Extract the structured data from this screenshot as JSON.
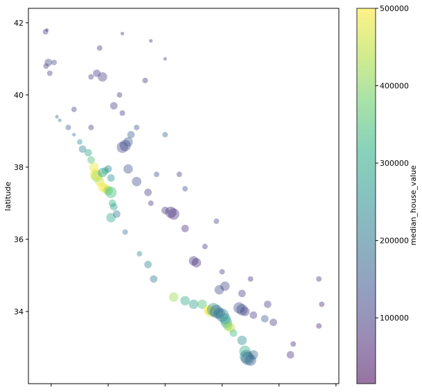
{
  "chart_data": {
    "type": "scatter",
    "title": "",
    "xlabel": "",
    "ylabel": "latitude",
    "ylim": [
      32.0,
      42.4
    ],
    "xlim": [
      -124.8,
      -113.9
    ],
    "yticks": [
      34,
      36,
      38,
      40,
      42
    ],
    "xticks": [
      -124,
      -122,
      -120,
      -118,
      -116,
      -114
    ],
    "grid": false,
    "colormap": "viridis",
    "colorbar": {
      "label": "median_house_value",
      "range": [
        14999,
        500001
      ],
      "ticks": [
        100000,
        200000,
        300000,
        400000,
        500000
      ],
      "tick_labels": [
        "100000",
        "200000",
        "300000",
        "400000",
        "500000"
      ]
    },
    "marker_alpha": 0.4,
    "series": [
      {
        "values_desc": "longitude, latitude, median_house_value, population-size",
        "points": [
          [
            -124.15,
            41.8,
            85000,
            1
          ],
          [
            -124.2,
            41.75,
            90000,
            2
          ],
          [
            -124.18,
            40.8,
            95000,
            2
          ],
          [
            -124.1,
            40.9,
            110000,
            3
          ],
          [
            -124.05,
            40.6,
            100000,
            2
          ],
          [
            -123.8,
            39.4,
            140000,
            1
          ],
          [
            -123.7,
            39.3,
            180000,
            1
          ],
          [
            -123.4,
            39.1,
            150000,
            2
          ],
          [
            -123.2,
            38.9,
            200000,
            1
          ],
          [
            -123.0,
            38.7,
            260000,
            2
          ],
          [
            -122.9,
            38.5,
            230000,
            3
          ],
          [
            -122.7,
            38.4,
            290000,
            3
          ],
          [
            -122.6,
            38.2,
            350000,
            3
          ],
          [
            -122.5,
            38.0,
            480000,
            4
          ],
          [
            -122.45,
            37.8,
            500000,
            5
          ],
          [
            -122.4,
            37.75,
            420000,
            5
          ],
          [
            -122.3,
            37.6,
            460000,
            4
          ],
          [
            -122.2,
            37.45,
            500000,
            4
          ],
          [
            -122.1,
            37.4,
            480000,
            4
          ],
          [
            -122.0,
            37.35,
            400000,
            4
          ],
          [
            -121.9,
            37.3,
            330000,
            5
          ],
          [
            -121.85,
            37.0,
            310000,
            3
          ],
          [
            -121.8,
            36.9,
            280000,
            3
          ],
          [
            -121.9,
            36.6,
            300000,
            4
          ],
          [
            -121.7,
            36.7,
            200000,
            3
          ],
          [
            -122.2,
            37.85,
            280000,
            4
          ],
          [
            -122.1,
            37.9,
            330000,
            3
          ],
          [
            -122.0,
            37.95,
            220000,
            3
          ],
          [
            -121.5,
            38.55,
            120000,
            5
          ],
          [
            -121.4,
            38.6,
            110000,
            5
          ],
          [
            -121.3,
            38.7,
            140000,
            4
          ],
          [
            -121.2,
            38.9,
            160000,
            3
          ],
          [
            -121.0,
            39.1,
            130000,
            2
          ],
          [
            -121.5,
            39.5,
            80000,
            2
          ],
          [
            -121.8,
            39.7,
            90000,
            3
          ],
          [
            -122.2,
            40.5,
            95000,
            4
          ],
          [
            -122.4,
            40.6,
            85000,
            3
          ],
          [
            -122.6,
            40.5,
            100000,
            2
          ],
          [
            -121.9,
            37.7,
            250000,
            3
          ],
          [
            -121.3,
            37.95,
            130000,
            4
          ],
          [
            -121.0,
            37.6,
            120000,
            4
          ],
          [
            -120.6,
            37.3,
            95000,
            3
          ],
          [
            -120.5,
            37.0,
            85000,
            2
          ],
          [
            -120.0,
            36.8,
            90000,
            3
          ],
          [
            -119.8,
            36.75,
            80000,
            5
          ],
          [
            -119.7,
            36.7,
            75000,
            5
          ],
          [
            -119.3,
            36.3,
            70000,
            3
          ],
          [
            -119.0,
            35.4,
            75000,
            4
          ],
          [
            -118.9,
            35.35,
            80000,
            4
          ],
          [
            -120.6,
            35.3,
            230000,
            3
          ],
          [
            -120.4,
            34.9,
            200000,
            3
          ],
          [
            -119.7,
            34.4,
            420000,
            4
          ],
          [
            -119.3,
            34.3,
            300000,
            4
          ],
          [
            -119.0,
            34.2,
            280000,
            4
          ],
          [
            -118.7,
            34.2,
            350000,
            4
          ],
          [
            -118.5,
            34.05,
            500000,
            4
          ],
          [
            -118.4,
            34.0,
            480000,
            5
          ],
          [
            -118.3,
            34.05,
            250000,
            6
          ],
          [
            -118.2,
            34.0,
            170000,
            6
          ],
          [
            -118.1,
            33.95,
            190000,
            5
          ],
          [
            -118.0,
            33.9,
            210000,
            6
          ],
          [
            -117.9,
            33.8,
            250000,
            5
          ],
          [
            -117.85,
            33.7,
            290000,
            5
          ],
          [
            -117.8,
            33.6,
            380000,
            4
          ],
          [
            -117.7,
            33.55,
            450000,
            4
          ],
          [
            -117.6,
            33.4,
            330000,
            3
          ],
          [
            -117.4,
            34.1,
            130000,
            5
          ],
          [
            -117.3,
            34.05,
            120000,
            5
          ],
          [
            -117.2,
            34.0,
            110000,
            4
          ],
          [
            -116.9,
            33.9,
            100000,
            3
          ],
          [
            -117.3,
            33.2,
            240000,
            4
          ],
          [
            -117.2,
            32.9,
            310000,
            5
          ],
          [
            -117.15,
            32.75,
            220000,
            6
          ],
          [
            -117.1,
            32.7,
            180000,
            6
          ],
          [
            -117.0,
            32.65,
            160000,
            5
          ],
          [
            -116.9,
            32.8,
            170000,
            4
          ],
          [
            -116.5,
            33.8,
            140000,
            3
          ],
          [
            -116.2,
            33.7,
            90000,
            3
          ],
          [
            -115.6,
            32.8,
            80000,
            3
          ],
          [
            -115.5,
            33.1,
            70000,
            2
          ],
          [
            -114.6,
            33.6,
            60000,
            2
          ],
          [
            -114.6,
            34.9,
            75000,
            2
          ],
          [
            -114.5,
            34.2,
            70000,
            2
          ],
          [
            -117.9,
            34.7,
            110000,
            4
          ],
          [
            -118.1,
            34.6,
            120000,
            4
          ],
          [
            -117.3,
            34.5,
            100000,
            3
          ],
          [
            -117.0,
            34.9,
            80000,
            2
          ],
          [
            -116.4,
            34.2,
            90000,
            3
          ],
          [
            -118.2,
            36.5,
            110000,
            2
          ],
          [
            -119.3,
            37.4,
            130000,
            2
          ],
          [
            -120.0,
            38.9,
            180000,
            2
          ],
          [
            -123.9,
            40.9,
            120000,
            2
          ],
          [
            -122.3,
            41.3,
            85000,
            2
          ],
          [
            -121.5,
            41.7,
            70000,
            1
          ],
          [
            -120.5,
            41.5,
            65000,
            1
          ],
          [
            -120.7,
            40.4,
            80000,
            2
          ],
          [
            -120.0,
            41.0,
            75000,
            1
          ],
          [
            -123.2,
            39.6,
            110000,
            2
          ],
          [
            -122.6,
            39.1,
            90000,
            2
          ],
          [
            -121.6,
            40.0,
            85000,
            2
          ],
          [
            -120.3,
            37.8,
            120000,
            2
          ],
          [
            -119.5,
            37.8,
            100000,
            2
          ],
          [
            -118.6,
            35.8,
            90000,
            2
          ],
          [
            -118.0,
            35.1,
            95000,
            2
          ],
          [
            -121.4,
            36.2,
            200000,
            2
          ],
          [
            -120.9,
            35.6,
            240000,
            2
          ]
        ]
      }
    ]
  }
}
